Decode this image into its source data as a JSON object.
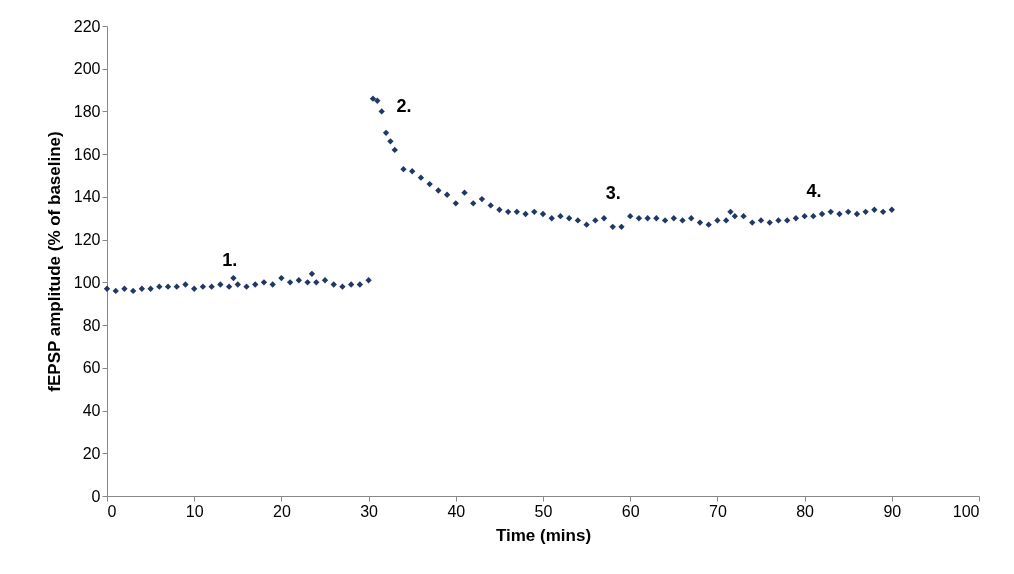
{
  "chart_data": {
    "type": "scatter",
    "xlabel": "Time (mins)",
    "ylabel": "fEPSP amplitude (% of baseline)",
    "marker": "diamond",
    "grid": false,
    "xlim": [
      0,
      100
    ],
    "xticks": [
      0,
      10,
      20,
      30,
      40,
      50,
      60,
      70,
      80,
      90,
      100
    ],
    "ylim": [
      0,
      220
    ],
    "yticks": [
      0,
      20,
      40,
      60,
      80,
      100,
      120,
      140,
      160,
      180,
      200,
      220
    ],
    "annotations": [
      "1.",
      "2.",
      "3.",
      "4."
    ],
    "series": [
      {
        "color": "#1f3864",
        "x": [
          0,
          1,
          2,
          3,
          4,
          5,
          6,
          7,
          8,
          9,
          10,
          11,
          12,
          13,
          14,
          14.5,
          15,
          16,
          17,
          18,
          19,
          20,
          21,
          22,
          23,
          23.5,
          24,
          25,
          26,
          27,
          28,
          29,
          30,
          30.5,
          31,
          31.5,
          32,
          32.5,
          33,
          34,
          35,
          36,
          37,
          38,
          39,
          40,
          41,
          42,
          43,
          44,
          45,
          46,
          47,
          48,
          49,
          50,
          51,
          52,
          53,
          54,
          55,
          56,
          57,
          58,
          59,
          60,
          61,
          62,
          63,
          64,
          65,
          66,
          67,
          68,
          69,
          70,
          71,
          71.5,
          72,
          73,
          74,
          75,
          76,
          77,
          78,
          79,
          80,
          81,
          82,
          83,
          84,
          85,
          86,
          87,
          88,
          89,
          90
        ],
        "values": [
          97,
          96,
          97,
          96,
          97,
          97,
          98,
          98,
          98,
          99,
          97,
          98,
          98,
          99,
          98,
          102,
          99,
          98,
          99,
          100,
          99,
          102,
          100,
          101,
          100,
          104,
          100,
          101,
          99,
          98,
          99,
          99,
          101,
          186,
          185,
          180,
          170,
          166,
          162,
          153,
          152,
          149,
          146,
          143,
          141,
          137,
          142,
          137,
          139,
          136,
          134,
          133,
          133,
          132,
          133,
          132,
          130,
          131,
          130,
          129,
          127,
          129,
          130,
          126,
          126,
          131,
          130,
          130,
          130,
          129,
          130,
          129,
          130,
          128,
          127,
          129,
          129,
          133,
          131,
          131,
          128,
          129,
          128,
          129,
          129,
          130,
          131,
          131,
          132,
          133,
          132,
          133,
          132,
          133,
          134,
          133,
          134
        ]
      }
    ]
  }
}
